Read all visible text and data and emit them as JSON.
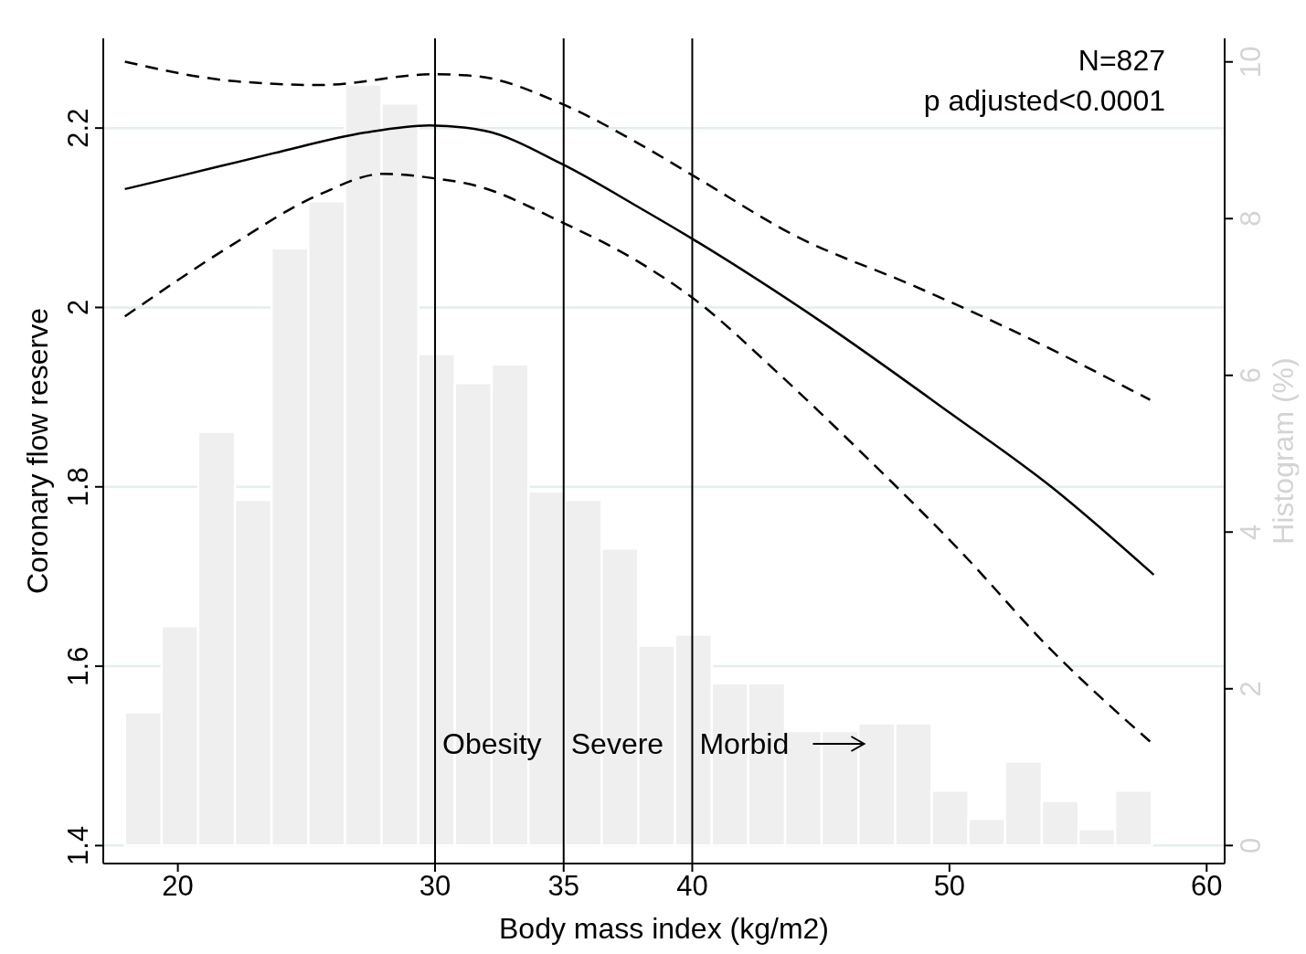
{
  "chart_data": {
    "type": "line",
    "xlabel": "Body mass index (kg/m2)",
    "ylabel": "Coronary flow reserve",
    "y2label": "Histogram (%)",
    "xlim": [
      17.1,
      60.7
    ],
    "xticks": [
      20,
      30,
      35,
      40,
      50,
      60
    ],
    "ylim": [
      1.38,
      2.3
    ],
    "yticks": [
      1.4,
      1.6,
      1.8,
      2,
      2.2
    ],
    "y2lim": [
      -0.23,
      10.3
    ],
    "y2ticks": [
      0,
      2,
      4,
      6,
      8,
      10
    ],
    "grid": "y",
    "marker": "none",
    "series": [
      {
        "type": "histogram",
        "axis": "y2",
        "color": "#efefef",
        "bins": [
          17.94,
          19.37,
          20.79,
          22.22,
          23.64,
          25.07,
          26.5,
          27.92,
          29.35,
          30.77,
          32.2,
          33.63,
          35.05,
          36.48,
          37.9,
          39.33,
          40.76,
          42.18,
          43.61,
          45.03,
          46.46,
          47.89,
          49.31,
          50.74,
          52.16,
          53.59,
          55.02,
          56.44,
          57.87
        ],
        "values": [
          1.7,
          2.8,
          5.28,
          4.41,
          7.62,
          8.22,
          9.71,
          9.47,
          6.27,
          5.9,
          6.14,
          4.52,
          4.41,
          3.79,
          2.55,
          2.69,
          2.07,
          2.07,
          1.46,
          1.46,
          1.56,
          1.56,
          0.7,
          0.34,
          1.07,
          0.57,
          0.21,
          0.7
        ]
      },
      {
        "color": "#000000",
        "line_style": "solid",
        "x": [
          17.94,
          20,
          23.73,
          27.29,
          29.78,
          31.91,
          34.93,
          37.96,
          40.09,
          45.07,
          50.04,
          53.96,
          57.94
        ],
        "values": [
          2.132,
          2.146,
          2.172,
          2.195,
          2.203,
          2.197,
          2.16,
          2.111,
          2.075,
          1.983,
          1.882,
          1.8,
          1.702
        ]
      },
      {
        "color": "#000000",
        "line_style": "dashed",
        "x": [
          17.94,
          21.96,
          25.51,
          29.96,
          31.56,
          34.93,
          37.96,
          40.09,
          44,
          48.62,
          52.18,
          57.8
        ],
        "values": [
          2.274,
          2.253,
          2.248,
          2.26,
          2.258,
          2.227,
          2.182,
          2.146,
          2.08,
          2.024,
          1.978,
          1.897
        ]
      },
      {
        "color": "#000000",
        "line_style": "dashed",
        "x": [
          17.94,
          21.96,
          25.51,
          28,
          29.96,
          31.56,
          34.93,
          37.96,
          40.09,
          43.29,
          46.84,
          50.4,
          53.96,
          57.8
        ],
        "values": [
          1.99,
          2.067,
          2.126,
          2.149,
          2.144,
          2.136,
          2.095,
          2.05,
          2.009,
          1.928,
          1.831,
          1.729,
          1.618,
          1.516
        ]
      }
    ],
    "ref_lines": [
      {
        "axis": "x",
        "value": 30,
        "label": "Obesity",
        "color": "#000000"
      },
      {
        "axis": "x",
        "value": 35,
        "label": "Severe",
        "color": "#000000"
      },
      {
        "axis": "x",
        "value": 40,
        "label": "Morbid",
        "color": "#000000"
      }
    ],
    "annotations": [
      "N=827",
      "p adjusted<0.0001"
    ]
  }
}
